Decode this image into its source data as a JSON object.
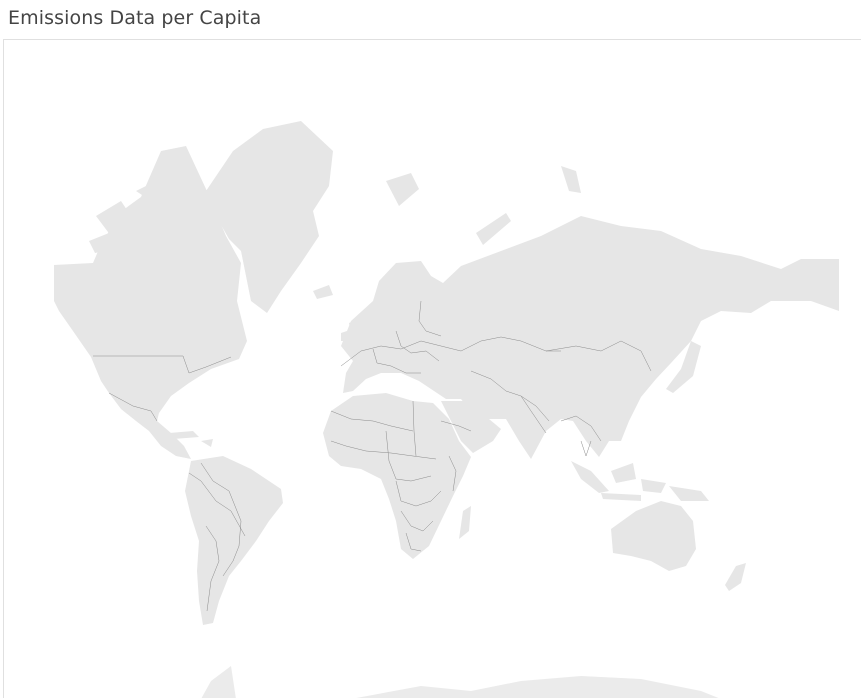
{
  "title": "Emissions Data per Capita",
  "map": {
    "land_color": "#e6e6e6",
    "border_color": "#8a8a8a",
    "background_color": "#ffffff"
  }
}
